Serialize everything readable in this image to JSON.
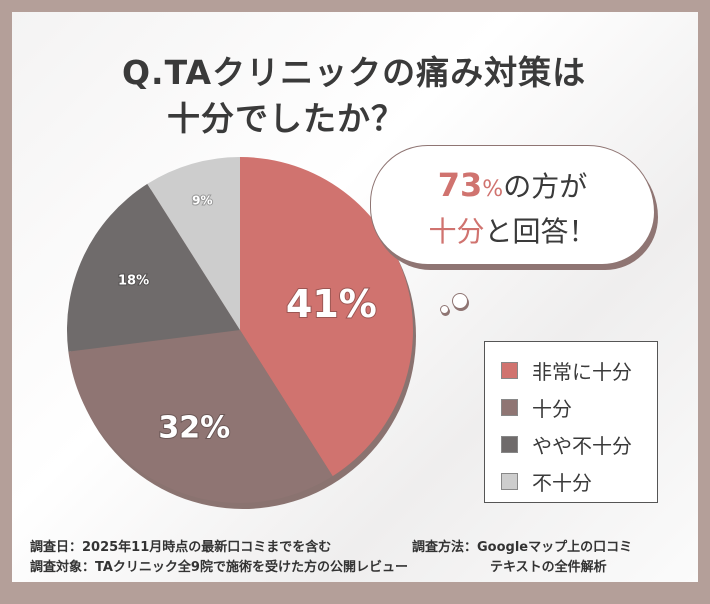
{
  "title": {
    "line1": "Q.TAクリニックの痛み対策は",
    "line2": "十分でしたか？"
  },
  "bubble": {
    "pct": "73",
    "pct_sign": "%",
    "text1": "の方が",
    "accent2": "十分",
    "text2": "と回答！"
  },
  "chart_data": {
    "type": "pie",
    "categories": [
      "非常に十分",
      "十分",
      "やや不十分",
      "不十分"
    ],
    "values": [
      41,
      32,
      18,
      9
    ],
    "labels": [
      "41%",
      "32%",
      "18%",
      "9%"
    ],
    "colors": [
      "#d0736f",
      "#8f7573",
      "#6f6b6b",
      "#cdcdcd"
    ],
    "start": "top",
    "direction": "clockwise",
    "legend": "right"
  },
  "notes": {
    "date": "調査日：2025年11月時点の最新口コミまでを含む",
    "target": "調査対象：TAクリニック全9院で施術を受けた方の公開レビュー",
    "method1": "調査方法：Googleマップ上の口コミ",
    "method2": "テキストの全件解析"
  }
}
